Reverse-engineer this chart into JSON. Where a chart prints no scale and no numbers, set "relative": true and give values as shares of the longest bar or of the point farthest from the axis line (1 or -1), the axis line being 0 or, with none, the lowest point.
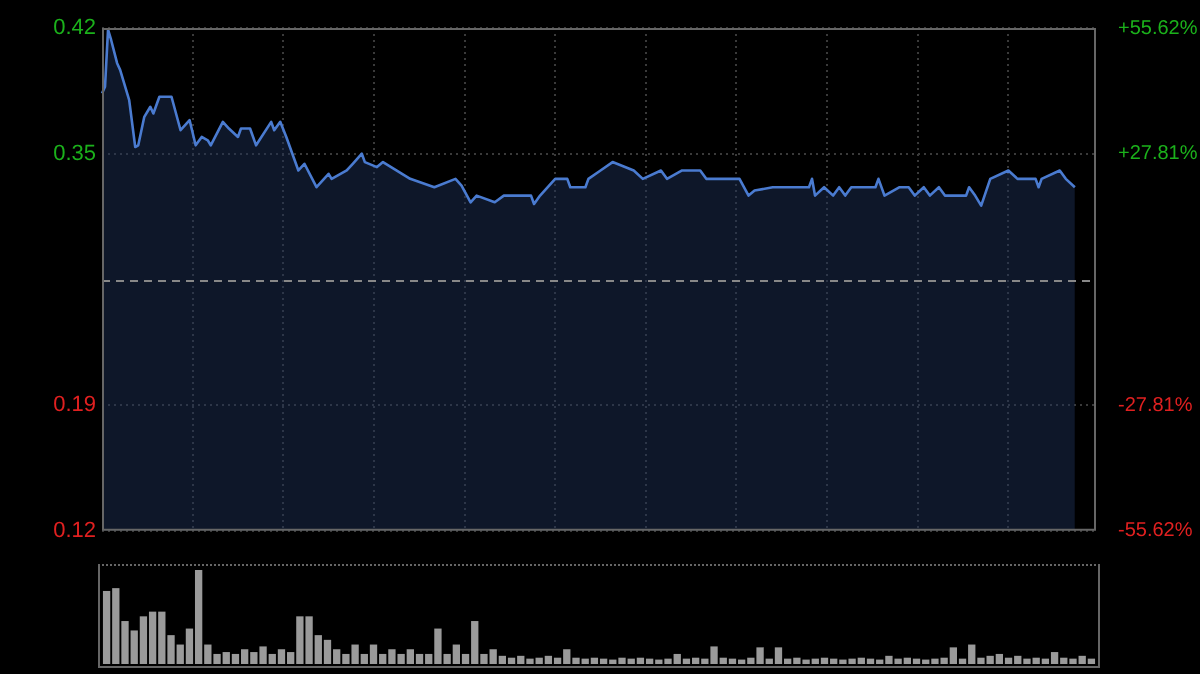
{
  "chart_data": [
    {
      "type": "area",
      "color": "#4a7bd0",
      "marker": "none",
      "grid": true,
      "categories": [
        null,
        null,
        null,
        null,
        null,
        null,
        null,
        null,
        null,
        null,
        null,
        null,
        null,
        null,
        null,
        null,
        null,
        null,
        null,
        null,
        null,
        null,
        null,
        null,
        null,
        null,
        null,
        null,
        null,
        null,
        null,
        null,
        null,
        null,
        null,
        null,
        null,
        null,
        null,
        null,
        null,
        null,
        null,
        null,
        null,
        null,
        null,
        null,
        null,
        null,
        null,
        null,
        null,
        null,
        null,
        null,
        null,
        null,
        null,
        null,
        null,
        null,
        null,
        null,
        null,
        null,
        null,
        null,
        null,
        null,
        null,
        null,
        null,
        null,
        null,
        null,
        null,
        null,
        null,
        null,
        null,
        null,
        null,
        null,
        null,
        null,
        null,
        null,
        null,
        null,
        null,
        null,
        null,
        null,
        null,
        null,
        null,
        null,
        null,
        null,
        null,
        null,
        null,
        null,
        null,
        null,
        null,
        null,
        null,
        null,
        null,
        null,
        null,
        null,
        null,
        null,
        null,
        null,
        null,
        null,
        null,
        null,
        null,
        null,
        null,
        null,
        null,
        null,
        null,
        null,
        null,
        null,
        null,
        null,
        null,
        null,
        null,
        null,
        null,
        null,
        null,
        null,
        null,
        null,
        null,
        null,
        null,
        null,
        null,
        null,
        null,
        null,
        null,
        null,
        null,
        null,
        null,
        null,
        null,
        null,
        null,
        null,
        null,
        null,
        null,
        null,
        null,
        null,
        null,
        null,
        null,
        null,
        null,
        null,
        null,
        null,
        null,
        null,
        null,
        null,
        null,
        null,
        null,
        null,
        null,
        null,
        null,
        null,
        null,
        null,
        null,
        null,
        null,
        null,
        null,
        null,
        null,
        null,
        null,
        null,
        null,
        null,
        null,
        null,
        null,
        null,
        null,
        null,
        null,
        null,
        null,
        null,
        null,
        null,
        null,
        null,
        null,
        null,
        null,
        null,
        null,
        null,
        null,
        null,
        null,
        null,
        null,
        null,
        null,
        null,
        null,
        null,
        null,
        null,
        null,
        null,
        null,
        null,
        null,
        null,
        null,
        null,
        null,
        null,
        null,
        null,
        null,
        null,
        null,
        null,
        null,
        null,
        null,
        null,
        null,
        null,
        null,
        null,
        null,
        null,
        null,
        null,
        null,
        null,
        null,
        null,
        null,
        null,
        null,
        null,
        null,
        null,
        null,
        null,
        null,
        null,
        null,
        null,
        null,
        null,
        null,
        null,
        null,
        null,
        null,
        null,
        null,
        null,
        null,
        null,
        null,
        null,
        null,
        null,
        null,
        null,
        null,
        null,
        null,
        null,
        null,
        null,
        null,
        null,
        null,
        null,
        null,
        null,
        null,
        null,
        null,
        null,
        null,
        null,
        null,
        null,
        null,
        null,
        null,
        null,
        null,
        null,
        null,
        null,
        null,
        null,
        null,
        null,
        null,
        null
      ],
      "values": [
        0.381,
        0.385,
        0.419,
        0.413,
        null,
        0.399,
        0.395,
        null,
        null,
        0.377,
        null,
        0.349,
        0.35,
        null,
        0.367,
        null,
        0.373,
        0.369,
        null,
        0.379,
        null,
        null,
        null,
        0.379,
        null,
        null,
        0.359,
        null,
        null,
        0.365,
        null,
        0.35,
        null,
        0.355,
        null,
        0.353,
        0.35,
        null,
        null,
        null,
        0.364,
        null,
        0.36,
        null,
        null,
        0.355,
        0.36,
        null,
        null,
        0.36,
        null,
        0.35,
        null,
        null,
        null,
        null,
        0.364,
        0.359,
        null,
        0.364,
        null,
        0.355,
        null,
        null,
        null,
        0.335,
        null,
        0.339,
        null,
        null,
        null,
        0.325,
        null,
        null,
        null,
        0.333,
        0.33,
        null,
        null,
        null,
        null,
        0.335,
        null,
        0.339,
        null,
        null,
        0.345,
        0.34,
        null,
        null,
        null,
        0.337,
        null,
        0.34,
        null,
        null,
        null,
        null,
        null,
        null,
        null,
        null,
        0.33,
        null,
        null,
        null,
        null,
        null,
        null,
        null,
        0.325,
        null,
        null,
        null,
        null,
        null,
        null,
        0.33,
        null,
        0.326,
        null,
        null,
        0.316,
        null,
        0.32,
        null,
        null,
        null,
        null,
        null,
        0.316,
        null,
        null,
        0.32,
        null,
        null,
        null,
        null,
        null,
        null,
        null,
        null,
        0.32,
        0.315,
        null,
        0.32,
        null,
        null,
        null,
        null,
        0.33,
        null,
        null,
        null,
        0.33,
        0.325,
        null,
        null,
        null,
        null,
        0.325,
        0.33,
        null,
        null,
        null,
        0.335,
        null,
        null,
        null,
        0.34,
        null,
        null,
        null,
        null,
        null,
        null,
        0.335,
        null,
        null,
        0.33,
        null,
        null,
        null,
        null,
        null,
        0.335,
        null,
        0.33,
        null,
        null,
        null,
        null,
        0.335,
        null,
        null,
        null,
        null,
        null,
        0.335,
        null,
        0.33,
        null,
        null,
        null,
        null,
        null,
        null,
        null,
        null,
        null,
        null,
        0.33,
        null,
        null,
        0.32,
        null,
        0.323,
        null,
        null,
        null,
        null,
        null,
        0.325,
        null,
        null,
        null,
        null,
        null,
        null,
        null,
        null,
        null,
        null,
        null,
        0.325,
        0.33,
        0.32,
        null,
        null,
        0.325,
        null,
        null,
        0.32,
        null,
        0.325,
        null,
        0.32,
        null,
        0.325,
        null,
        null,
        null,
        null,
        null,
        null,
        null,
        0.325,
        0.33,
        null,
        0.32,
        null,
        null,
        null,
        null,
        0.325,
        null,
        null,
        0.325,
        null,
        0.32,
        null,
        null,
        0.325,
        null,
        0.32,
        null,
        null,
        0.325,
        null,
        0.32,
        null,
        null,
        null,
        null,
        null,
        null,
        0.32,
        0.325,
        null,
        0.32,
        null,
        0.314,
        null,
        null,
        0.33,
        null,
        null,
        null,
        null,
        null,
        0.335,
        null,
        null,
        0.33,
        null,
        null,
        null,
        null,
        null,
        0.33,
        0.325,
        0.33,
        null,
        null,
        null,
        null,
        null,
        0.335,
        null,
        0.33,
        null,
        null,
        0.325,
        null,
        null,
        null,
        null,
        null,
        null,
        null
      ],
      "ylim": [
        0.12,
        0.42
      ],
      "yticks": [
        0.12,
        {
          "value": 0.195,
          "label": "0.19"
        },
        {
          "value": 0.345,
          "label": "0.35"
        },
        0.42
      ],
      "y2lim": [
        -55.62,
        55.62
      ],
      "y2ticks": [
        {
          "value": -55.62,
          "label": "-55.62%"
        },
        {
          "value": -27.81,
          "label": "-27.81%"
        },
        {
          "value": 27.81,
          "label": "+27.81%"
        },
        {
          "value": 55.62,
          "label": "+55.62%"
        }
      ],
      "ref_lines": [
        {
          "axis": "y",
          "value": 0.27,
          "line_style": "dashed"
        }
      ]
    },
    {
      "type": "bar",
      "relative": true,
      "color": "#9a9a9a",
      "categories": [
        null,
        null,
        null,
        null,
        null,
        null,
        null,
        null,
        null,
        null,
        null,
        null,
        null,
        null,
        null,
        null,
        null,
        null,
        null,
        null,
        null,
        null,
        null,
        null,
        null,
        null,
        null,
        null,
        null,
        null,
        null,
        null,
        null,
        null,
        null,
        null,
        null,
        null,
        null,
        null,
        null,
        null,
        null,
        null,
        null,
        null,
        null,
        null,
        null,
        null,
        null,
        null,
        null,
        null,
        null,
        null,
        null,
        null,
        null,
        null,
        null,
        null,
        null,
        null,
        null,
        null,
        null,
        null,
        null,
        null,
        null,
        null,
        null,
        null,
        null,
        null,
        null,
        null,
        null,
        null,
        null,
        null,
        null,
        null,
        null,
        null,
        null,
        null,
        null,
        null,
        null,
        null,
        null,
        null,
        null,
        null,
        null,
        null,
        null,
        null,
        null,
        null,
        null,
        null,
        null,
        null,
        null,
        null
      ],
      "values": [
        0.77,
        0.8,
        0.45,
        0.35,
        0.5,
        0.55,
        0.55,
        0.3,
        0.2,
        0.37,
        1,
        0.2,
        0.1,
        0.12,
        0.1,
        0.15,
        0.12,
        0.18,
        0.1,
        0.15,
        0.12,
        0.5,
        0.5,
        0.3,
        0.25,
        0.15,
        0.1,
        0.2,
        0.1,
        0.2,
        0.1,
        0.15,
        0.1,
        0.15,
        0.1,
        0.1,
        0.37,
        0.1,
        0.2,
        0.1,
        0.45,
        0.1,
        0.15,
        0.08,
        0.06,
        0.08,
        0.05,
        0.06,
        0.08,
        0.06,
        0.15,
        0.06,
        0.05,
        0.06,
        0.05,
        0.04,
        0.06,
        0.05,
        0.06,
        0.05,
        0.04,
        0.05,
        0.1,
        0.05,
        0.06,
        0.05,
        0.18,
        0.06,
        0.05,
        0.04,
        0.06,
        0.17,
        0.05,
        0.17,
        0.05,
        0.06,
        0.04,
        0.05,
        0.06,
        0.05,
        0.04,
        0.05,
        0.06,
        0.05,
        0.04,
        0.08,
        0.05,
        0.06,
        0.05,
        0.04,
        0.05,
        0.06,
        0.17,
        0.05,
        0.2,
        0.06,
        0.08,
        0.1,
        0.06,
        0.08,
        0.05,
        0.06,
        0.05,
        0.12,
        0.06,
        0.05,
        0.08,
        0.05
      ]
    }
  ]
}
